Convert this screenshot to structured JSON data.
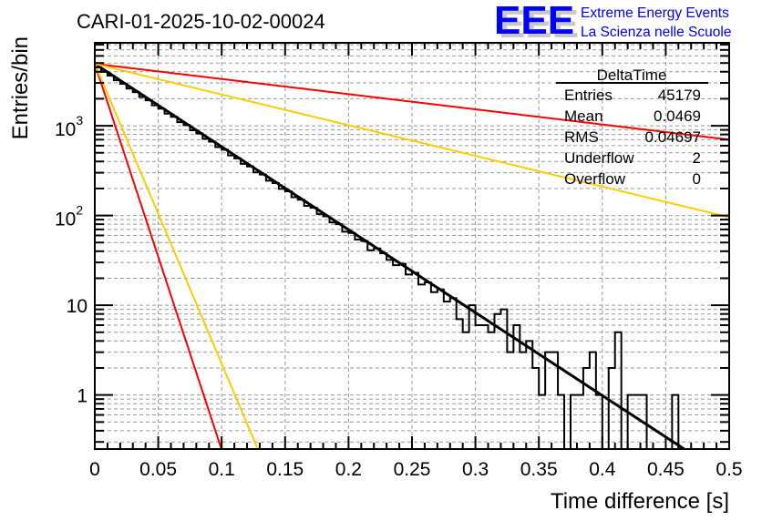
{
  "header": {
    "title": "CARI-01-2025-10-02-00024",
    "logo_text": "EEE",
    "logo_line1": "Extreme Energy Events",
    "logo_line2": "La Scienza nelle Scuole"
  },
  "stats": {
    "name": "DeltaTime",
    "rows": [
      {
        "label": "Entries",
        "value": "45179"
      },
      {
        "label": "Mean",
        "value": "0.0469"
      },
      {
        "label": "RMS",
        "value": "0.04697"
      },
      {
        "label": "Underflow",
        "value": "2"
      },
      {
        "label": "Overflow",
        "value": "0"
      }
    ]
  },
  "colors": {
    "hist": "#000000",
    "red": "#ff0000",
    "yellow": "#ffcc00",
    "grid": "#999999",
    "logo": "#0000ff"
  },
  "chart_data": {
    "type": "bar",
    "title": "CARI-01-2025-10-02-00024",
    "xlabel": "Time difference [s]",
    "ylabel": "Entries/bin",
    "xlim": [
      0,
      0.5
    ],
    "ylim": [
      0.25,
      8400
    ],
    "yscale": "log",
    "grid": true,
    "bin_width": 0.005,
    "x_ticks": [
      "0",
      "0.05",
      "0.1",
      "0.15",
      "0.2",
      "0.25",
      "0.3",
      "0.35",
      "0.4",
      "0.45",
      "0.5"
    ],
    "y_ticks": [
      {
        "value": 1,
        "label": "1",
        "exp": ""
      },
      {
        "value": 10,
        "label": "10",
        "exp": ""
      },
      {
        "value": 100,
        "label": "10",
        "exp": "2"
      },
      {
        "value": 1000,
        "label": "10",
        "exp": "3"
      }
    ],
    "values": [
      4471,
      3987,
      3620,
      3210,
      2935,
      2598,
      2370,
      2090,
      1922,
      1690,
      1552,
      1364,
      1258,
      1098,
      1015,
      890,
      822,
      716,
      665,
      579,
      541,
      468,
      433,
      377,
      352,
      302,
      286,
      244,
      230,
      198,
      186,
      160,
      150,
      128,
      122,
      104,
      98,
      84,
      80,
      66,
      64,
      54,
      52,
      41,
      43,
      38,
      32,
      28,
      29,
      22,
      23,
      17,
      18,
      14,
      15,
      11,
      12,
      7,
      5,
      10,
      6,
      6,
      5,
      8,
      9,
      3,
      6,
      3,
      4,
      2,
      1,
      3,
      3,
      1,
      0,
      1,
      1,
      2,
      3,
      1,
      0,
      2,
      5,
      0,
      1,
      1,
      1,
      0,
      0,
      0,
      0,
      1,
      0,
      0,
      0,
      0,
      0,
      0,
      0,
      0
    ],
    "functions": [
      {
        "name": "fit",
        "color": "black",
        "N0": 4900,
        "tau": 0.047,
        "width": 3
      },
      {
        "name": "red-slow",
        "color": "red",
        "N0": 4900,
        "tau": 0.257,
        "width": 2
      },
      {
        "name": "yellow-slow",
        "color": "yellow",
        "N0": 4900,
        "tau": 0.127,
        "width": 2
      },
      {
        "name": "red-fast",
        "color": "red",
        "N0": 4900,
        "tau": 0.0101,
        "width": 2
      },
      {
        "name": "yellow-fast",
        "color": "yellow",
        "N0": 4900,
        "tau": 0.013,
        "width": 2
      }
    ]
  }
}
